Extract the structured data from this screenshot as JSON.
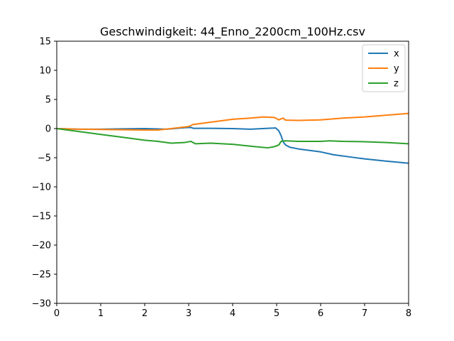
{
  "chart_data": {
    "type": "line",
    "title": "Geschwindigkeit: 44_Enno_2200cm_100Hz.csv",
    "xlabel": "",
    "ylabel": "",
    "xlim": [
      0,
      8
    ],
    "ylim": [
      -30,
      15
    ],
    "xticks": [
      0,
      1,
      2,
      3,
      4,
      5,
      6,
      7,
      8
    ],
    "yticks": [
      15,
      10,
      5,
      0,
      -5,
      -10,
      -15,
      -20,
      -25,
      -30
    ],
    "grid": false,
    "legend_position": "top-right",
    "series": [
      {
        "name": "x",
        "color": "#1f77b4",
        "x": [
          0,
          0.5,
          1,
          1.5,
          2,
          2.5,
          2.9,
          3.05,
          3.1,
          3.5,
          4,
          4.4,
          4.8,
          4.98,
          5.05,
          5.1,
          5.15,
          5.2,
          5.3,
          5.5,
          6,
          6.3,
          6.7,
          7,
          7.5,
          8
        ],
        "y": [
          0,
          -0.1,
          -0.1,
          -0.05,
          0,
          -0.1,
          0.15,
          0.2,
          0.05,
          0.05,
          0,
          -0.1,
          0.05,
          0.1,
          -0.4,
          -1.2,
          -2.3,
          -2.8,
          -3.2,
          -3.5,
          -4.0,
          -4.5,
          -4.9,
          -5.2,
          -5.6,
          -5.95
        ]
      },
      {
        "name": "y",
        "color": "#ff7f0e",
        "x": [
          0,
          0.5,
          1,
          1.5,
          2,
          2.3,
          2.6,
          3.0,
          3.1,
          3.5,
          4,
          4.4,
          4.7,
          4.95,
          5.05,
          5.15,
          5.2,
          5.5,
          6,
          6.5,
          7,
          7.5,
          8
        ],
        "y": [
          0,
          -0.1,
          -0.15,
          -0.2,
          -0.25,
          -0.25,
          0,
          0.35,
          0.7,
          1.1,
          1.6,
          1.8,
          2.0,
          1.9,
          1.5,
          1.8,
          1.45,
          1.4,
          1.5,
          1.8,
          2.0,
          2.3,
          2.6
        ]
      },
      {
        "name": "z",
        "color": "#2ca02c",
        "x": [
          0,
          0.5,
          1,
          1.5,
          2,
          2.3,
          2.6,
          2.9,
          3.05,
          3.15,
          3.5,
          4,
          4.5,
          4.8,
          4.95,
          5.05,
          5.1,
          5.2,
          5.5,
          6,
          6.2,
          6.5,
          7,
          7.5,
          8
        ],
        "y": [
          0,
          -0.5,
          -1.0,
          -1.5,
          -2.0,
          -2.2,
          -2.5,
          -2.4,
          -2.2,
          -2.6,
          -2.5,
          -2.7,
          -3.1,
          -3.3,
          -3.1,
          -2.8,
          -2.2,
          -2.1,
          -2.2,
          -2.2,
          -2.1,
          -2.2,
          -2.25,
          -2.4,
          -2.6
        ]
      }
    ]
  }
}
